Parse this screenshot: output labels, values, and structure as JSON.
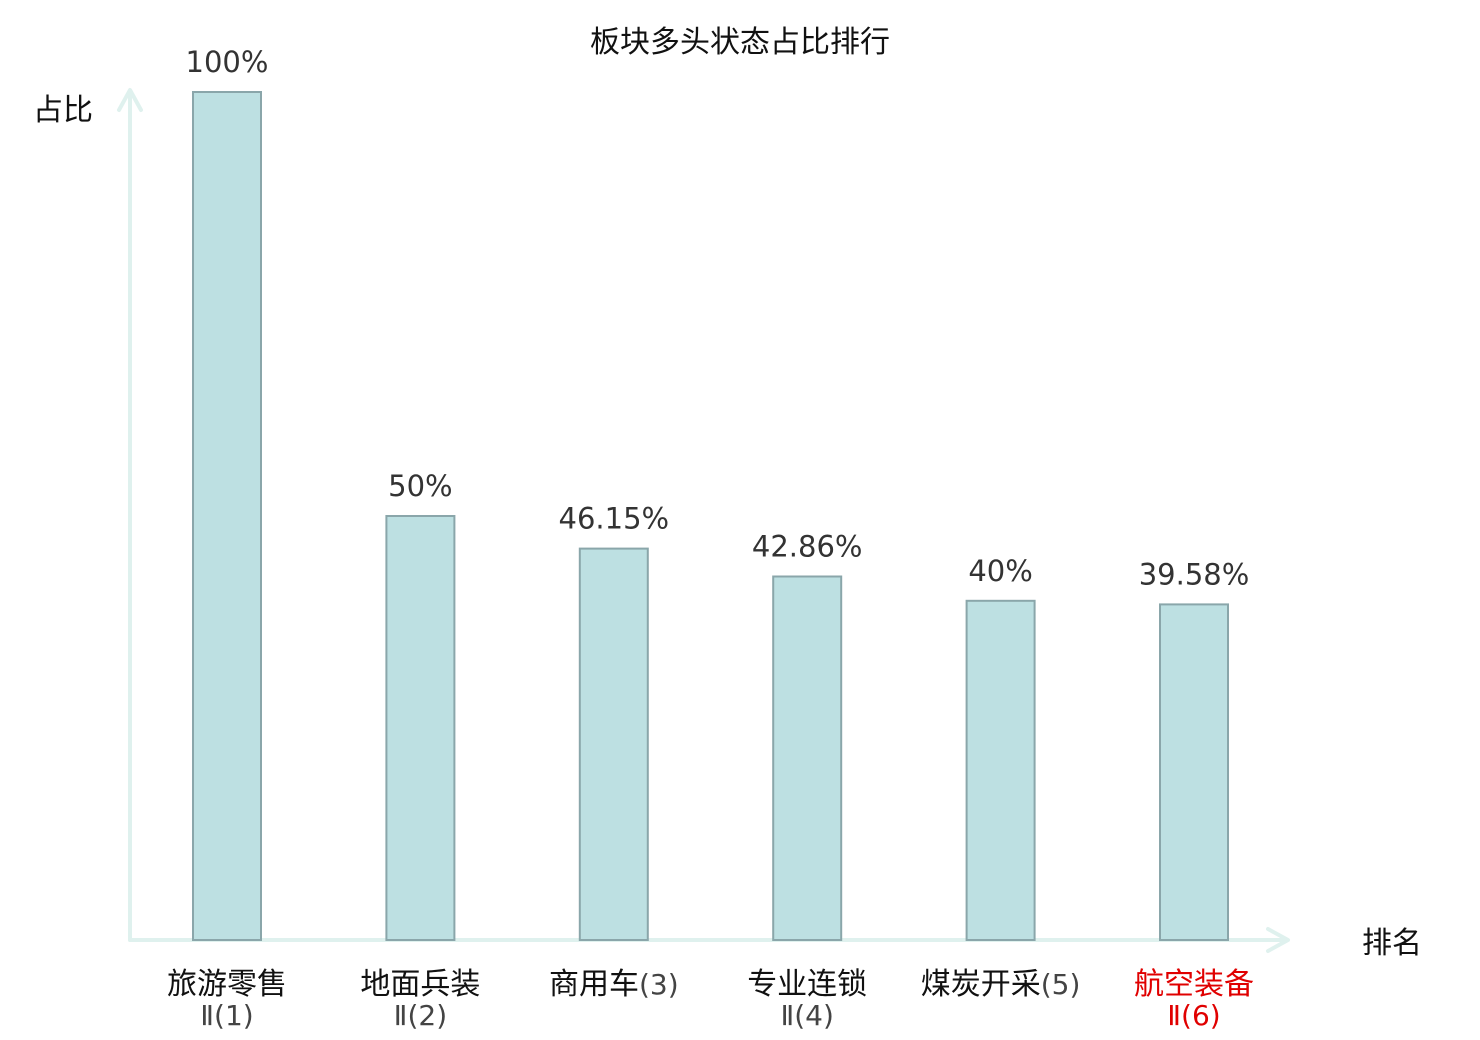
{
  "chart_data": {
    "type": "bar",
    "title": "板块多头状态占比排行",
    "ylabel": "占比",
    "xlabel": "排名",
    "ylim": [
      0,
      100
    ],
    "grid": false,
    "categories": [
      {
        "name": "旅游零售",
        "rank_label": "Ⅱ(1)"
      },
      {
        "name": "地面兵装",
        "rank_label": "Ⅱ(2)"
      },
      {
        "name": "商用车",
        "rank_label": "(3)"
      },
      {
        "name": "专业连锁",
        "rank_label": "Ⅱ(4)"
      },
      {
        "name": "煤炭开采",
        "rank_label": "(5)"
      },
      {
        "name": "航空装备",
        "rank_label": "Ⅱ(6)"
      }
    ],
    "values": [
      100,
      50,
      46.15,
      42.86,
      40,
      39.58
    ],
    "value_labels": [
      "100%",
      "50%",
      "46.15%",
      "42.86%",
      "40%",
      "39.58%"
    ],
    "highlight_index": 5,
    "colors": {
      "bar_fill": "#bde0e2",
      "bar_stroke": "#8aa6aa",
      "axis": "#dff1ee",
      "text": "#111111",
      "value_text": "#333333",
      "sub_text": "#444444",
      "highlight": "#e00000"
    }
  }
}
